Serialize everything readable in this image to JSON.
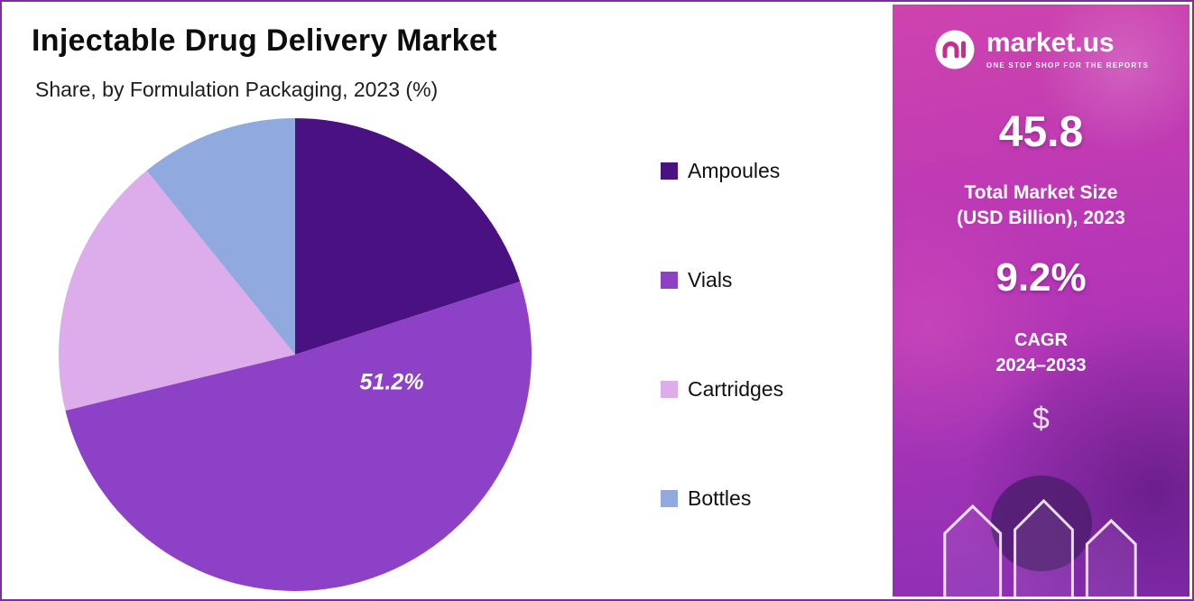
{
  "page": {
    "title": "Injectable Drug Delivery Market",
    "subtitle": "Share, by Formulation Packaging, 2023 (%)"
  },
  "chart_data": {
    "type": "pie",
    "title": "Injectable Drug Delivery Market Share, by Formulation Packaging, 2023 (%)",
    "direction": "clockwise",
    "start_angle_deg": 0,
    "legend_position": "right",
    "series": [
      {
        "name": "Ampoules",
        "value": 20.0,
        "color": "#4a1182",
        "label": ""
      },
      {
        "name": "Vials",
        "value": 51.2,
        "color": "#8c41c6",
        "label": "51.2%"
      },
      {
        "name": "Cartridges",
        "value": 18.0,
        "color": "#dcaceb",
        "label": ""
      },
      {
        "name": "Bottles",
        "value": 10.8,
        "color": "#90a9de",
        "label": ""
      }
    ]
  },
  "sidebar": {
    "brand": {
      "name": "market.us",
      "tagline": "ONE STOP SHOP FOR THE REPORTS"
    },
    "market_size_value": "45.8",
    "market_size_label_line1": "Total Market Size",
    "market_size_label_line2": "(USD Billion), 2023",
    "cagr_value": "9.2%",
    "cagr_label_line1": "CAGR",
    "cagr_label_line2": "2024–2033",
    "dollar_icon": "$"
  },
  "colors": {
    "frame_border": "#7c2f9c",
    "sidebar_gradient_top": "#cf43ae",
    "sidebar_gradient_bottom": "#8a2fb5",
    "logo_accent": "#c92b8e"
  }
}
